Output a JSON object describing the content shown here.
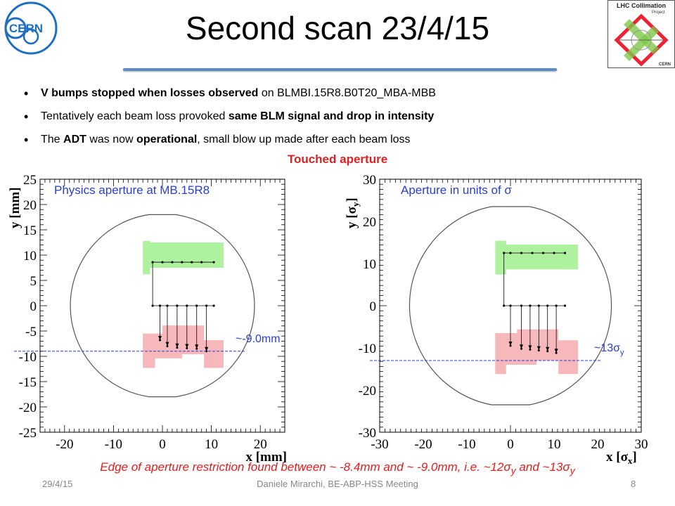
{
  "slide": {
    "title": "Second scan 23/4/15",
    "bullets": [
      [
        {
          "t": "V bumps stopped when losses observed",
          "b": true
        },
        {
          "t": " on BLMBI.15R8.B0T20_MBA-MBB",
          "b": false
        }
      ],
      [
        {
          "t": "Tentatively each beam loss provoked ",
          "b": false
        },
        {
          "t": "same BLM signal and drop in intensity",
          "b": true
        }
      ],
      [
        {
          "t": "The ",
          "b": false
        },
        {
          "t": "ADT",
          "b": true
        },
        {
          "t": " was now ",
          "b": false
        },
        {
          "t": "operational",
          "b": true
        },
        {
          "t": ", small blow up made after each beam loss",
          "b": false
        }
      ]
    ],
    "highlight": "Touched aperture",
    "caption": "Edge of aperture restriction found between ~ -8.4mm and ~ -9.0mm, i.e. ~12σ",
    "caption_sub1": "y",
    "caption_mid": " and ~13σ",
    "caption_sub2": "y",
    "footer": {
      "date": "29/4/15",
      "author": "Daniele Mirarchi, BE-ABP-HSS Meeting",
      "page": "8"
    },
    "logos": {
      "cern": "CERN",
      "lhc": "LHC Collimation",
      "lhc_sub": "Project",
      "lhc_bottom": "CERN"
    }
  },
  "chart_data": [
    {
      "type": "scatter",
      "title": "Physics aperture at MB.15R8",
      "xlabel": "x [mm]",
      "ylabel": "y [mm]",
      "xlim": [
        -25,
        25
      ],
      "ylim": [
        -25,
        25
      ],
      "x_ticks": [
        -20,
        -10,
        0,
        10,
        20
      ],
      "y_ticks": [
        25,
        20,
        15,
        10,
        5,
        0,
        -5,
        -10,
        -15,
        -20,
        -25
      ],
      "aperture": {
        "half_width": 21.5,
        "half_height": 18.0
      },
      "green_region": [
        [
          -4,
          6.2
        ],
        [
          -2.5,
          6.2
        ],
        [
          -2.5,
          7.5
        ],
        [
          12.5,
          7.5
        ],
        [
          12.5,
          12.5
        ],
        [
          -2.5,
          12.5
        ],
        [
          -2.5,
          12.8
        ],
        [
          -4,
          12.8
        ]
      ],
      "red_region": [
        [
          -4,
          -12.3
        ],
        [
          -1.5,
          -12.3
        ],
        [
          -1.5,
          -10.4
        ],
        [
          4,
          -10.4
        ],
        [
          4,
          -9.6
        ],
        [
          8.5,
          -9.6
        ],
        [
          8.5,
          -12.3
        ],
        [
          12.5,
          -12.3
        ],
        [
          12.5,
          -6.8
        ],
        [
          8.5,
          -6.8
        ],
        [
          8.5,
          -3.9
        ],
        [
          0,
          -3.9
        ],
        [
          0,
          -5.5
        ],
        [
          -4,
          -5.5
        ]
      ],
      "series": [
        {
          "x": [
            -2.0,
            0,
            2,
            4,
            6,
            8,
            10.5
          ],
          "y": [
            8.6,
            8.6,
            8.6,
            8.6,
            8.6,
            8.6,
            8.6
          ]
        },
        {
          "x": [
            -2.0,
            -0.5,
            1,
            3,
            5,
            7,
            9,
            10.5
          ],
          "y": [
            0,
            0,
            0,
            0,
            0,
            0,
            0,
            0
          ]
        },
        {
          "x": [
            -0.5,
            1,
            3,
            5,
            7,
            9
          ],
          "y": [
            -6.8,
            -8.0,
            -8.3,
            -8.4,
            -8.5,
            -9.0
          ]
        }
      ],
      "threshold": {
        "y": -9.0,
        "label": "~-9.0mm"
      }
    },
    {
      "type": "scatter",
      "title": "Aperture in units of σ",
      "xlabel": "x [σ",
      "xlabel_sub": "x",
      "ylabel": "y [σ",
      "ylabel_sub": "y",
      "xlim": [
        -30,
        30
      ],
      "ylim": [
        -30,
        30
      ],
      "x_ticks": [
        -30,
        -20,
        -10,
        0,
        10,
        20,
        30
      ],
      "y_ticks": [
        30,
        20,
        10,
        0,
        -10,
        -20,
        -30
      ],
      "aperture": {
        "half_width": 27.5,
        "half_height": 23.5
      },
      "green_region": [
        [
          -3.5,
          7.4
        ],
        [
          -1,
          7.4
        ],
        [
          -1,
          8.6
        ],
        [
          15.5,
          8.6
        ],
        [
          15.5,
          14.5
        ],
        [
          -1,
          14.5
        ],
        [
          -1,
          15.4
        ],
        [
          -3.5,
          15.4
        ]
      ],
      "red_region": [
        [
          -3.5,
          -16.2
        ],
        [
          -1,
          -16.2
        ],
        [
          -1,
          -14
        ],
        [
          6,
          -14
        ],
        [
          6,
          -13
        ],
        [
          11,
          -13
        ],
        [
          11,
          -16.2
        ],
        [
          15.5,
          -16.2
        ],
        [
          15.5,
          -8.2
        ],
        [
          11,
          -8.2
        ],
        [
          11,
          -5.6
        ],
        [
          1.5,
          -5.6
        ],
        [
          1.5,
          -6.5
        ],
        [
          -3.5,
          -6.5
        ]
      ],
      "series": [
        {
          "x": [
            -1.5,
            0,
            2.5,
            5,
            7.5,
            10,
            12.5
          ],
          "y": [
            12.5,
            12.5,
            12.5,
            12.5,
            12.5,
            12.5,
            12.5
          ]
        },
        {
          "x": [
            -1.5,
            0,
            2.5,
            4.5,
            6.5,
            8.5,
            10.5,
            12.5
          ],
          "y": [
            0,
            0,
            0,
            0,
            0,
            0,
            0,
            0
          ]
        },
        {
          "x": [
            0,
            2.5,
            4.5,
            6.5,
            8.5,
            10.5
          ],
          "y": [
            -9.5,
            -10.2,
            -10.4,
            -10.6,
            -10.8,
            -11.2
          ]
        }
      ],
      "threshold": {
        "y": -13,
        "label": "~13σ",
        "label_sub": "y"
      }
    }
  ],
  "colors": {
    "green": "#aef2a0",
    "red": "#f7b8bc",
    "accent": "#2a3fd0",
    "caption": "#e02020",
    "rule": "#5b8bc9"
  }
}
